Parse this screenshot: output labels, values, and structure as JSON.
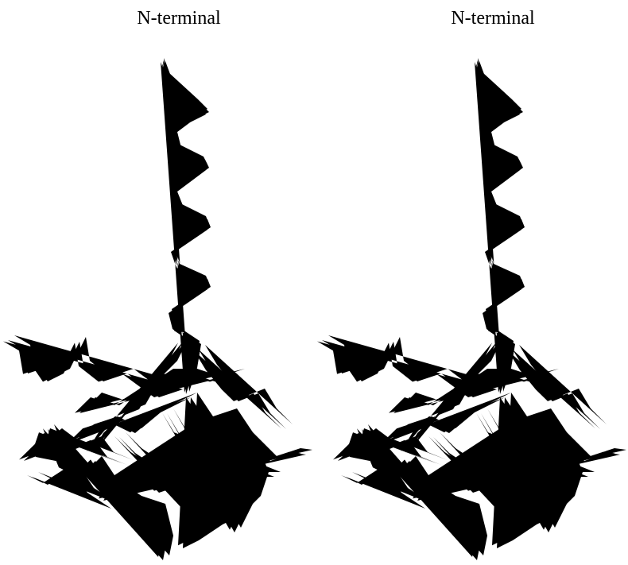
{
  "panels": [
    {
      "label": "N-terminal"
    },
    {
      "label": "N-terminal"
    }
  ]
}
